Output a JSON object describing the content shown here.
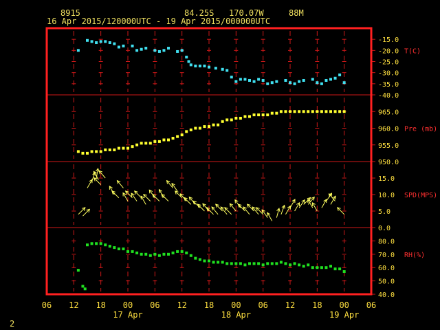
{
  "header": {
    "station_id": "8915",
    "location": "84.25S   170.07W",
    "elevation": "88M",
    "time_range": "16 Apr 2015/120000UTC - 19 Apr 2015/000000UTC"
  },
  "footer": {
    "page_number": "2"
  },
  "colors": {
    "frame": "#ff2020",
    "grid": "#d01818",
    "label": "#ffe040",
    "axis_label": "#ff3030",
    "temperature": "#40e0f0",
    "pressure": "#ffff30",
    "wind": "#ffff60",
    "rh": "#20e020"
  },
  "chart_data": {
    "type": "scatter",
    "x_axis": {
      "unit": "hours since 16 Apr 2015 00 UTC",
      "range": [
        6,
        78
      ],
      "tick_hours": [
        6,
        12,
        18,
        24,
        30,
        36,
        42,
        48,
        54,
        60,
        66,
        72,
        78
      ],
      "tick_labels": [
        "06",
        "12",
        "18",
        "00",
        "06",
        "12",
        "18",
        "00",
        "06",
        "12",
        "18",
        "00",
        "06"
      ],
      "date_labels": [
        {
          "hour": 24,
          "text": "17 Apr"
        },
        {
          "hour": 48,
          "text": "18 Apr"
        },
        {
          "hour": 72,
          "text": "19 Apr"
        }
      ]
    },
    "panels": [
      {
        "key": "temperature",
        "label": "T(C)",
        "ylim": [
          -40,
          -10
        ],
        "ticks": [
          -40,
          -35,
          -30,
          -25,
          -20,
          -15
        ],
        "tick_labels": [
          "-40.0",
          "-35.0",
          "-30.0",
          "-25.0",
          "-20.0",
          "-15.0"
        ],
        "points": [
          [
            13,
            -20
          ],
          [
            15,
            -15.5
          ],
          [
            16,
            -16
          ],
          [
            17,
            -16.5
          ],
          [
            18,
            -16
          ],
          [
            19,
            -16
          ],
          [
            20,
            -16.5
          ],
          [
            21,
            -17
          ],
          [
            22,
            -18.5
          ],
          [
            23,
            -18
          ],
          [
            25,
            -18
          ],
          [
            26,
            -20
          ],
          [
            27,
            -19.5
          ],
          [
            28,
            -19
          ],
          [
            30,
            -20
          ],
          [
            31,
            -20.5
          ],
          [
            32,
            -20
          ],
          [
            33,
            -19
          ],
          [
            35,
            -20.5
          ],
          [
            36,
            -20
          ],
          [
            37,
            -23
          ],
          [
            37.5,
            -25
          ],
          [
            38,
            -26.5
          ],
          [
            39,
            -27
          ],
          [
            40,
            -27
          ],
          [
            41,
            -27
          ],
          [
            42,
            -27.5
          ],
          [
            43.5,
            -28
          ],
          [
            45,
            -28.5
          ],
          [
            46,
            -29
          ],
          [
            47,
            -32
          ],
          [
            48,
            -34
          ],
          [
            49,
            -33
          ],
          [
            50,
            -33
          ],
          [
            51,
            -33.5
          ],
          [
            52,
            -34
          ],
          [
            53,
            -33
          ],
          [
            54,
            -33.5
          ],
          [
            55,
            -35
          ],
          [
            56,
            -34.5
          ],
          [
            57,
            -34
          ],
          [
            59,
            -33.5
          ],
          [
            60,
            -34.5
          ],
          [
            61,
            -35
          ],
          [
            62,
            -34
          ],
          [
            63,
            -33.5
          ],
          [
            65,
            -33
          ],
          [
            66,
            -34.5
          ],
          [
            67,
            -35
          ],
          [
            68,
            -33.5
          ],
          [
            69,
            -33
          ],
          [
            70,
            -32.5
          ],
          [
            71,
            -31
          ],
          [
            72,
            -34.5
          ]
        ]
      },
      {
        "key": "pressure",
        "label": "Pre (mb)",
        "ylim": [
          950,
          970
        ],
        "ticks": [
          950,
          955,
          960,
          965
        ],
        "tick_labels": [
          "950.0",
          "955.0",
          "960.0",
          "965.0"
        ],
        "points": [
          [
            13,
            953
          ],
          [
            14,
            952.5
          ],
          [
            15,
            952.5
          ],
          [
            16,
            953
          ],
          [
            17,
            953
          ],
          [
            18,
            953
          ],
          [
            19,
            953.5
          ],
          [
            20,
            953.5
          ],
          [
            21,
            953.5
          ],
          [
            22,
            954
          ],
          [
            23,
            954
          ],
          [
            24,
            954
          ],
          [
            25,
            954.5
          ],
          [
            26,
            955
          ],
          [
            27,
            955.5
          ],
          [
            28,
            955.5
          ],
          [
            29,
            955.5
          ],
          [
            30,
            956
          ],
          [
            31,
            956
          ],
          [
            32,
            956.5
          ],
          [
            33,
            956.5
          ],
          [
            34,
            957
          ],
          [
            35,
            957.5
          ],
          [
            36,
            958
          ],
          [
            37,
            959
          ],
          [
            38,
            959.5
          ],
          [
            39,
            960
          ],
          [
            40,
            960
          ],
          [
            41,
            960.5
          ],
          [
            42,
            960.5
          ],
          [
            43,
            961
          ],
          [
            44,
            961
          ],
          [
            45,
            962
          ],
          [
            46,
            962.5
          ],
          [
            47,
            962.5
          ],
          [
            48,
            963
          ],
          [
            49,
            963
          ],
          [
            50,
            963.5
          ],
          [
            51,
            963.5
          ],
          [
            52,
            964
          ],
          [
            53,
            964
          ],
          [
            54,
            964
          ],
          [
            55,
            964
          ],
          [
            56,
            964.5
          ],
          [
            57,
            964.5
          ],
          [
            58,
            965
          ],
          [
            59,
            965
          ],
          [
            60,
            965
          ],
          [
            61,
            965
          ],
          [
            62,
            965
          ],
          [
            63,
            965
          ],
          [
            64,
            965
          ],
          [
            65,
            965
          ],
          [
            66,
            965
          ],
          [
            67,
            965
          ],
          [
            68,
            965
          ],
          [
            69,
            965
          ],
          [
            70,
            965
          ],
          [
            71,
            965
          ],
          [
            72,
            965
          ]
        ]
      },
      {
        "key": "wind",
        "label": "SPD(MPS)",
        "ylim": [
          0,
          20
        ],
        "ticks": [
          0,
          5,
          10,
          15
        ],
        "tick_labels": [
          "0.0",
          "5.0",
          "10.0",
          "15.0"
        ],
        "arrows": [
          [
            13,
            4,
            45
          ],
          [
            14,
            3.5,
            45
          ],
          [
            15,
            12,
            30
          ],
          [
            16,
            14,
            20
          ],
          [
            17,
            15,
            10
          ],
          [
            17.5,
            14.5,
            -30
          ],
          [
            18,
            13,
            -45
          ],
          [
            19,
            15,
            -40
          ],
          [
            21,
            10,
            -30
          ],
          [
            22,
            9,
            -45
          ],
          [
            23,
            12,
            -40
          ],
          [
            24,
            8,
            -30
          ],
          [
            25,
            9,
            -45
          ],
          [
            26,
            8,
            -35
          ],
          [
            27,
            9,
            -45
          ],
          [
            28,
            7,
            -30
          ],
          [
            29,
            8,
            -45
          ],
          [
            30,
            9,
            -35
          ],
          [
            31,
            8,
            -45
          ],
          [
            32,
            9,
            -30
          ],
          [
            33,
            8,
            -45
          ],
          [
            34,
            12,
            -40
          ],
          [
            35,
            11,
            -35
          ],
          [
            36,
            9,
            -45
          ],
          [
            37,
            8,
            -40
          ],
          [
            38,
            7,
            -45
          ],
          [
            39,
            7,
            -40
          ],
          [
            40,
            6,
            -45
          ],
          [
            41,
            5,
            -45
          ],
          [
            42,
            5,
            -40
          ],
          [
            43,
            4,
            -45
          ],
          [
            44,
            4,
            -40
          ],
          [
            45,
            5,
            -45
          ],
          [
            46,
            4,
            -40
          ],
          [
            47,
            4,
            -45
          ],
          [
            48,
            5,
            -40
          ],
          [
            49,
            6,
            -35
          ],
          [
            50,
            5,
            -45
          ],
          [
            51,
            4,
            -40
          ],
          [
            52,
            5,
            -45
          ],
          [
            53,
            4,
            -40
          ],
          [
            54,
            4,
            -45
          ],
          [
            55,
            3,
            -35
          ],
          [
            56,
            2,
            -30
          ],
          [
            57,
            3,
            15
          ],
          [
            58,
            4,
            20
          ],
          [
            59,
            4,
            30
          ],
          [
            60,
            6,
            30
          ],
          [
            61,
            5,
            30
          ],
          [
            62,
            6,
            35
          ],
          [
            63,
            7,
            45
          ],
          [
            64,
            7,
            40
          ],
          [
            65,
            6,
            -30
          ],
          [
            66,
            5,
            -30
          ],
          [
            67,
            6,
            30
          ],
          [
            68,
            8,
            35
          ],
          [
            69,
            7,
            30
          ],
          [
            70,
            8,
            -40
          ],
          [
            72,
            4,
            -45
          ]
        ]
      },
      {
        "key": "rh",
        "label": "RH(%)",
        "ylim": [
          40,
          90
        ],
        "ticks": [
          40,
          50,
          60,
          70,
          80
        ],
        "tick_labels": [
          "40.0",
          "50.0",
          "60.0",
          "70.0",
          "80.0"
        ],
        "points": [
          [
            13,
            58
          ],
          [
            14,
            46
          ],
          [
            14.5,
            44
          ],
          [
            15,
            77
          ],
          [
            16,
            78
          ],
          [
            17,
            78
          ],
          [
            18,
            78
          ],
          [
            19,
            77
          ],
          [
            20,
            76
          ],
          [
            21,
            75
          ],
          [
            22,
            74
          ],
          [
            23,
            74
          ],
          [
            24,
            72
          ],
          [
            25,
            72
          ],
          [
            26,
            71
          ],
          [
            27,
            70
          ],
          [
            28,
            70
          ],
          [
            29,
            69
          ],
          [
            30,
            70
          ],
          [
            31,
            69
          ],
          [
            32,
            70
          ],
          [
            33,
            70
          ],
          [
            34,
            71
          ],
          [
            35,
            72
          ],
          [
            36,
            72
          ],
          [
            37,
            71
          ],
          [
            38,
            69
          ],
          [
            39,
            67
          ],
          [
            40,
            66
          ],
          [
            41,
            65
          ],
          [
            42,
            65
          ],
          [
            43,
            64
          ],
          [
            44,
            64
          ],
          [
            45,
            64
          ],
          [
            46,
            63
          ],
          [
            47,
            63
          ],
          [
            48,
            63
          ],
          [
            49,
            63
          ],
          [
            50,
            62
          ],
          [
            51,
            63
          ],
          [
            52,
            63
          ],
          [
            53,
            63
          ],
          [
            54,
            62
          ],
          [
            55,
            63
          ],
          [
            56,
            63
          ],
          [
            57,
            63
          ],
          [
            58,
            64
          ],
          [
            59,
            63
          ],
          [
            60,
            62
          ],
          [
            61,
            63
          ],
          [
            62,
            62
          ],
          [
            63,
            61
          ],
          [
            64,
            62
          ],
          [
            65,
            60
          ],
          [
            66,
            60
          ],
          [
            67,
            60
          ],
          [
            68,
            60
          ],
          [
            69,
            61
          ],
          [
            70,
            59
          ],
          [
            71,
            59
          ],
          [
            72,
            57
          ]
        ]
      }
    ]
  }
}
